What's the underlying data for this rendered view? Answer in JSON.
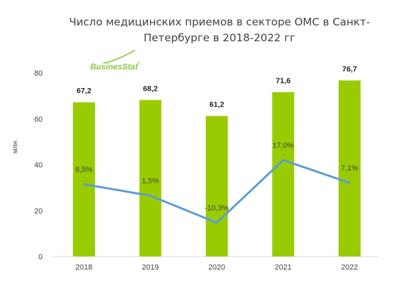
{
  "logo": {
    "text": "BusinesStat",
    "mark": "®",
    "color": "#8cc63f"
  },
  "chart_data": {
    "type": "bar",
    "title_lines": [
      "Число медицинских приемов в секторе ОМС в Санкт-",
      "Петербурге в 2018-2022 гг"
    ],
    "ylabel": "млн",
    "xlabel": "",
    "ylim": [
      0,
      80
    ],
    "yticks": [
      "0",
      "20",
      "40",
      "60",
      "80"
    ],
    "categories": [
      "2018",
      "2019",
      "2020",
      "2021",
      "2022"
    ],
    "values": [
      67.2,
      68.2,
      61.2,
      71.6,
      76.7
    ],
    "value_labels": [
      "67,2",
      "68,2",
      "61,2",
      "71,6",
      "76,7"
    ],
    "bar_color": "#99cc00",
    "line_series": {
      "values": [
        6.5,
        1.5,
        -10.3,
        17.0,
        7.1
      ],
      "labels": [
        "6,5%",
        "1,5%",
        "-10,3%",
        "17,0%",
        "7,1%"
      ],
      "color": "#5b9bd5",
      "ylim": [
        -25,
        55
      ]
    },
    "grid": false,
    "legend": "none"
  }
}
